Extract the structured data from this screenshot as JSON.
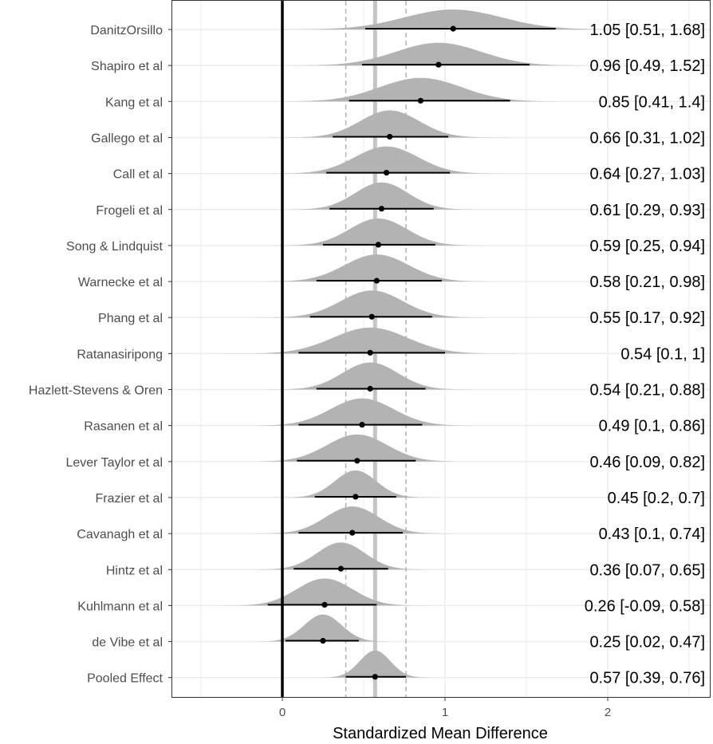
{
  "chart_data": {
    "type": "forest",
    "title": "",
    "xlabel": "Standardized Mean Difference",
    "ylabel": "",
    "xlim": [
      -0.68,
      2.62
    ],
    "xticks": [
      0,
      1,
      2
    ],
    "grid": true,
    "reference_line": 0,
    "pooled_interval_lines": [
      0.39,
      0.76
    ],
    "pooled_estimate_line": 0.57,
    "studies": [
      {
        "label": "DanitzOrsillo",
        "estimate": 1.05,
        "lower": 0.51,
        "upper": 1.68,
        "annotation": "1.05 [0.51, 1.68]"
      },
      {
        "label": "Shapiro et al",
        "estimate": 0.96,
        "lower": 0.49,
        "upper": 1.52,
        "annotation": "0.96 [0.49, 1.52]"
      },
      {
        "label": "Kang et al",
        "estimate": 0.85,
        "lower": 0.41,
        "upper": 1.4,
        "annotation": "0.85 [0.41, 1.4]"
      },
      {
        "label": "Gallego et al",
        "estimate": 0.66,
        "lower": 0.31,
        "upper": 1.02,
        "annotation": "0.66 [0.31, 1.02]"
      },
      {
        "label": "Call et al",
        "estimate": 0.64,
        "lower": 0.27,
        "upper": 1.03,
        "annotation": "0.64 [0.27, 1.03]"
      },
      {
        "label": "Frogeli et al",
        "estimate": 0.61,
        "lower": 0.29,
        "upper": 0.93,
        "annotation": "0.61 [0.29, 0.93]"
      },
      {
        "label": "Song & Lindquist",
        "estimate": 0.59,
        "lower": 0.25,
        "upper": 0.94,
        "annotation": "0.59 [0.25, 0.94]"
      },
      {
        "label": "Warnecke et al",
        "estimate": 0.58,
        "lower": 0.21,
        "upper": 0.98,
        "annotation": "0.58 [0.21, 0.98]"
      },
      {
        "label": "Phang et al",
        "estimate": 0.55,
        "lower": 0.17,
        "upper": 0.92,
        "annotation": "0.55 [0.17, 0.92]"
      },
      {
        "label": "Ratanasiripong",
        "estimate": 0.54,
        "lower": 0.1,
        "upper": 1,
        "annotation": "0.54 [0.1, 1]"
      },
      {
        "label": "Hazlett-Stevens & Oren",
        "estimate": 0.54,
        "lower": 0.21,
        "upper": 0.88,
        "annotation": "0.54 [0.21, 0.88]"
      },
      {
        "label": "Rasanen et al",
        "estimate": 0.49,
        "lower": 0.1,
        "upper": 0.86,
        "annotation": "0.49 [0.1, 0.86]"
      },
      {
        "label": "Lever Taylor et al",
        "estimate": 0.46,
        "lower": 0.09,
        "upper": 0.82,
        "annotation": "0.46 [0.09, 0.82]"
      },
      {
        "label": "Frazier et al",
        "estimate": 0.45,
        "lower": 0.2,
        "upper": 0.7,
        "annotation": "0.45 [0.2, 0.7]"
      },
      {
        "label": "Cavanagh et al",
        "estimate": 0.43,
        "lower": 0.1,
        "upper": 0.74,
        "annotation": "0.43 [0.1, 0.74]"
      },
      {
        "label": "Hintz et al",
        "estimate": 0.36,
        "lower": 0.07,
        "upper": 0.65,
        "annotation": "0.36 [0.07, 0.65]"
      },
      {
        "label": "Kuhlmann et al",
        "estimate": 0.26,
        "lower": -0.09,
        "upper": 0.58,
        "annotation": "0.26 [-0.09, 0.58]"
      },
      {
        "label": "de Vibe et al",
        "estimate": 0.25,
        "lower": 0.02,
        "upper": 0.47,
        "annotation": "0.25 [0.02, 0.47]"
      },
      {
        "label": "Pooled Effect",
        "estimate": 0.57,
        "lower": 0.39,
        "upper": 0.76,
        "annotation": "0.57 [0.39, 0.76]"
      }
    ],
    "colors": {
      "density": "#b3b3b3",
      "point": "#000000",
      "interval": "#000000",
      "zero_line": "#000000",
      "pooled_line": "#c4c4c4",
      "dashed_line": "#b3b3b3",
      "grid": "#ebebeb",
      "panel_border": "#333333"
    }
  }
}
